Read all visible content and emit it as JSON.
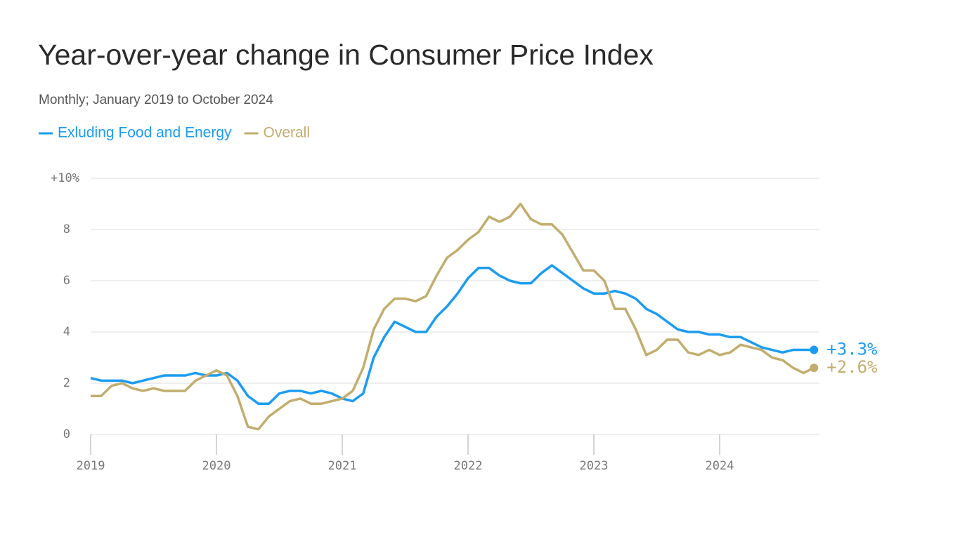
{
  "chart_data": {
    "type": "line",
    "title": "Year-over-year change in Consumer Price Index",
    "subtitle": "Monthly; January 2019 to October 2024",
    "categories": [
      "2019",
      null,
      null,
      null,
      null,
      null,
      null,
      null,
      null,
      null,
      null,
      null,
      "2020",
      null,
      null,
      null,
      null,
      null,
      null,
      null,
      null,
      null,
      null,
      null,
      "2021",
      null,
      null,
      null,
      null,
      null,
      null,
      null,
      null,
      null,
      null,
      null,
      "2022",
      null,
      null,
      null,
      null,
      null,
      null,
      null,
      null,
      null,
      null,
      null,
      "2023",
      null,
      null,
      null,
      null,
      null,
      null,
      null,
      null,
      null,
      null,
      null,
      "2024",
      null,
      null,
      null,
      null,
      null,
      null,
      null,
      null,
      null
    ],
    "series": [
      {
        "name": "Exluding Food and Energy",
        "color": "#1b9cf2",
        "values": [
          2.2,
          2.1,
          2.1,
          2.1,
          2.0,
          2.1,
          2.2,
          2.3,
          2.3,
          2.3,
          2.4,
          2.3,
          2.3,
          2.4,
          2.1,
          1.5,
          1.2,
          1.2,
          1.6,
          1.7,
          1.7,
          1.6,
          1.7,
          1.6,
          1.4,
          1.3,
          1.6,
          3.0,
          3.8,
          4.4,
          4.2,
          4.0,
          4.0,
          4.6,
          5.0,
          5.5,
          6.1,
          6.5,
          6.5,
          6.2,
          6.0,
          5.9,
          5.9,
          6.3,
          6.6,
          6.3,
          6.0,
          5.7,
          5.5,
          5.5,
          5.6,
          5.5,
          5.3,
          4.9,
          4.7,
          4.4,
          4.1,
          4.0,
          4.0,
          3.9,
          3.9,
          3.8,
          3.8,
          3.6,
          3.4,
          3.3,
          3.2,
          3.3,
          3.3,
          3.3
        ],
        "value_labels": [
          null,
          null,
          null,
          null,
          null,
          null,
          null,
          null,
          null,
          null,
          null,
          null,
          null,
          null,
          null,
          null,
          null,
          null,
          null,
          null,
          null,
          null,
          null,
          null,
          null,
          null,
          null,
          null,
          null,
          null,
          null,
          null,
          null,
          null,
          null,
          null,
          null,
          null,
          null,
          null,
          null,
          null,
          null,
          null,
          null,
          null,
          null,
          null,
          null,
          null,
          null,
          null,
          null,
          null,
          null,
          null,
          null,
          null,
          null,
          null,
          null,
          null,
          null,
          null,
          null,
          null,
          null,
          null,
          null,
          "+3.3%"
        ]
      },
      {
        "name": "Overall",
        "color": "#c2ad6e",
        "values": [
          1.5,
          1.5,
          1.9,
          2.0,
          1.8,
          1.7,
          1.8,
          1.7,
          1.7,
          1.7,
          2.1,
          2.3,
          2.5,
          2.3,
          1.5,
          0.3,
          0.2,
          0.7,
          1.0,
          1.3,
          1.4,
          1.2,
          1.2,
          1.3,
          1.4,
          1.7,
          2.6,
          4.1,
          4.9,
          5.3,
          5.3,
          5.2,
          5.4,
          6.2,
          6.9,
          7.2,
          7.6,
          7.9,
          8.5,
          8.3,
          8.5,
          9.0,
          8.4,
          8.2,
          8.2,
          7.8,
          7.1,
          6.4,
          6.4,
          6.0,
          4.9,
          4.9,
          4.1,
          3.1,
          3.3,
          3.7,
          3.7,
          3.2,
          3.1,
          3.3,
          3.1,
          3.2,
          3.5,
          3.4,
          3.3,
          3.0,
          2.9,
          2.6,
          2.4,
          2.6
        ],
        "value_labels": [
          null,
          null,
          null,
          null,
          null,
          null,
          null,
          null,
          null,
          null,
          null,
          null,
          null,
          null,
          null,
          null,
          null,
          null,
          null,
          null,
          null,
          null,
          null,
          null,
          null,
          null,
          null,
          null,
          null,
          null,
          null,
          null,
          null,
          null,
          null,
          null,
          null,
          null,
          null,
          null,
          null,
          null,
          null,
          null,
          null,
          null,
          null,
          null,
          null,
          null,
          null,
          null,
          null,
          null,
          null,
          null,
          null,
          null,
          null,
          null,
          null,
          null,
          null,
          null,
          null,
          null,
          null,
          null,
          null,
          "+2.6%"
        ]
      }
    ],
    "ylim": [
      0,
      10
    ],
    "yticks": [
      0,
      2,
      4,
      6,
      8,
      {
        "value": 10,
        "label": "+10%"
      }
    ],
    "grid": true
  }
}
